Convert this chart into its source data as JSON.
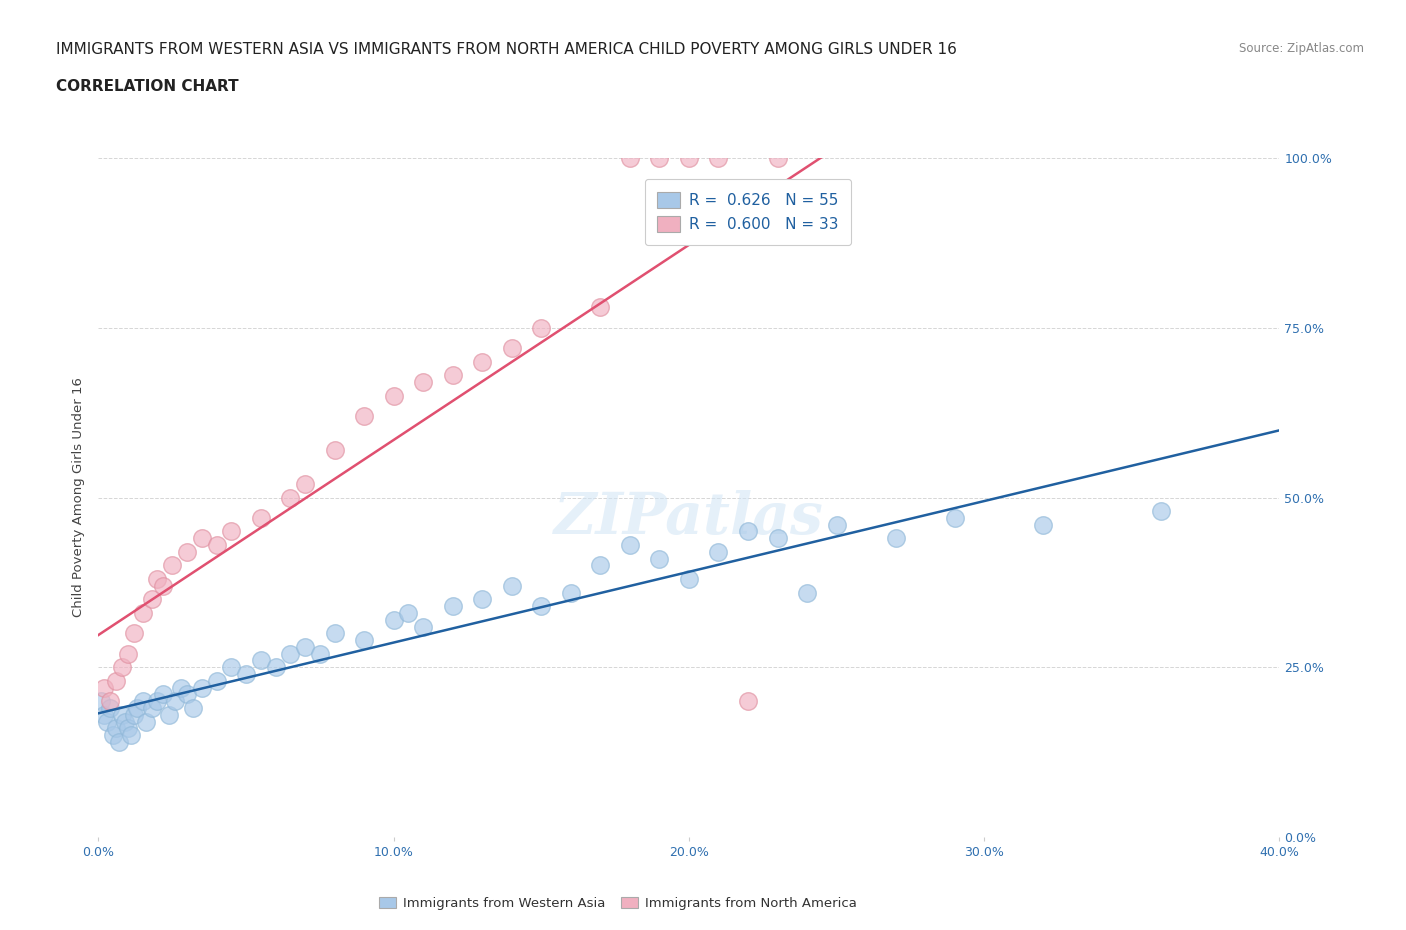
{
  "title": "IMMIGRANTS FROM WESTERN ASIA VS IMMIGRANTS FROM NORTH AMERICA CHILD POVERTY AMONG GIRLS UNDER 16",
  "subtitle": "CORRELATION CHART",
  "source": "Source: ZipAtlas.com",
  "ylabel": "Child Poverty Among Girls Under 16",
  "r_blue": 0.626,
  "n_blue": 55,
  "r_pink": 0.6,
  "n_pink": 33,
  "blue_color": "#a8c8e8",
  "pink_color": "#f0b0c0",
  "blue_line_color": "#2060a0",
  "pink_line_color": "#e05070",
  "watermark": "ZIPatlas",
  "blue_x": [
    0.1,
    0.2,
    0.3,
    0.4,
    0.5,
    0.6,
    0.7,
    0.8,
    0.9,
    1.0,
    1.1,
    1.2,
    1.3,
    1.5,
    1.6,
    1.8,
    2.0,
    2.2,
    2.4,
    2.6,
    2.8,
    3.0,
    3.2,
    3.5,
    4.0,
    4.5,
    5.0,
    5.5,
    6.0,
    6.5,
    7.0,
    7.5,
    8.0,
    9.0,
    10.0,
    10.5,
    11.0,
    12.0,
    13.0,
    14.0,
    15.0,
    16.0,
    17.0,
    18.0,
    19.0,
    20.0,
    21.0,
    22.0,
    23.0,
    24.0,
    25.0,
    27.0,
    29.0,
    32.0,
    36.0
  ],
  "blue_y": [
    20.0,
    18.0,
    17.0,
    19.0,
    15.0,
    16.0,
    14.0,
    18.0,
    17.0,
    16.0,
    15.0,
    18.0,
    19.0,
    20.0,
    17.0,
    19.0,
    20.0,
    21.0,
    18.0,
    20.0,
    22.0,
    21.0,
    19.0,
    22.0,
    23.0,
    25.0,
    24.0,
    26.0,
    25.0,
    27.0,
    28.0,
    27.0,
    30.0,
    29.0,
    32.0,
    33.0,
    31.0,
    34.0,
    35.0,
    37.0,
    34.0,
    36.0,
    40.0,
    43.0,
    41.0,
    38.0,
    42.0,
    45.0,
    44.0,
    36.0,
    46.0,
    44.0,
    47.0,
    46.0,
    48.0
  ],
  "pink_x": [
    0.2,
    0.4,
    0.6,
    0.8,
    1.0,
    1.2,
    1.5,
    1.8,
    2.0,
    2.2,
    2.5,
    3.0,
    3.5,
    4.0,
    4.5,
    5.5,
    6.5,
    7.0,
    8.0,
    9.0,
    10.0,
    11.0,
    12.0,
    13.0,
    14.0,
    15.0,
    17.0,
    18.0,
    19.0,
    20.0,
    21.0,
    22.0,
    23.0
  ],
  "pink_y": [
    22.0,
    20.0,
    23.0,
    25.0,
    27.0,
    30.0,
    33.0,
    35.0,
    38.0,
    37.0,
    40.0,
    42.0,
    44.0,
    43.0,
    45.0,
    47.0,
    50.0,
    52.0,
    57.0,
    62.0,
    65.0,
    67.0,
    68.0,
    70.0,
    72.0,
    75.0,
    78.0,
    100.0,
    100.0,
    100.0,
    100.0,
    20.0,
    100.0
  ],
  "xlim": [
    0,
    40
  ],
  "ylim": [
    0,
    100
  ],
  "title_fontsize": 11,
  "subtitle_fontsize": 11,
  "tick_fontsize": 9,
  "legend_fontsize": 11,
  "axis_label_fontsize": 9.5
}
